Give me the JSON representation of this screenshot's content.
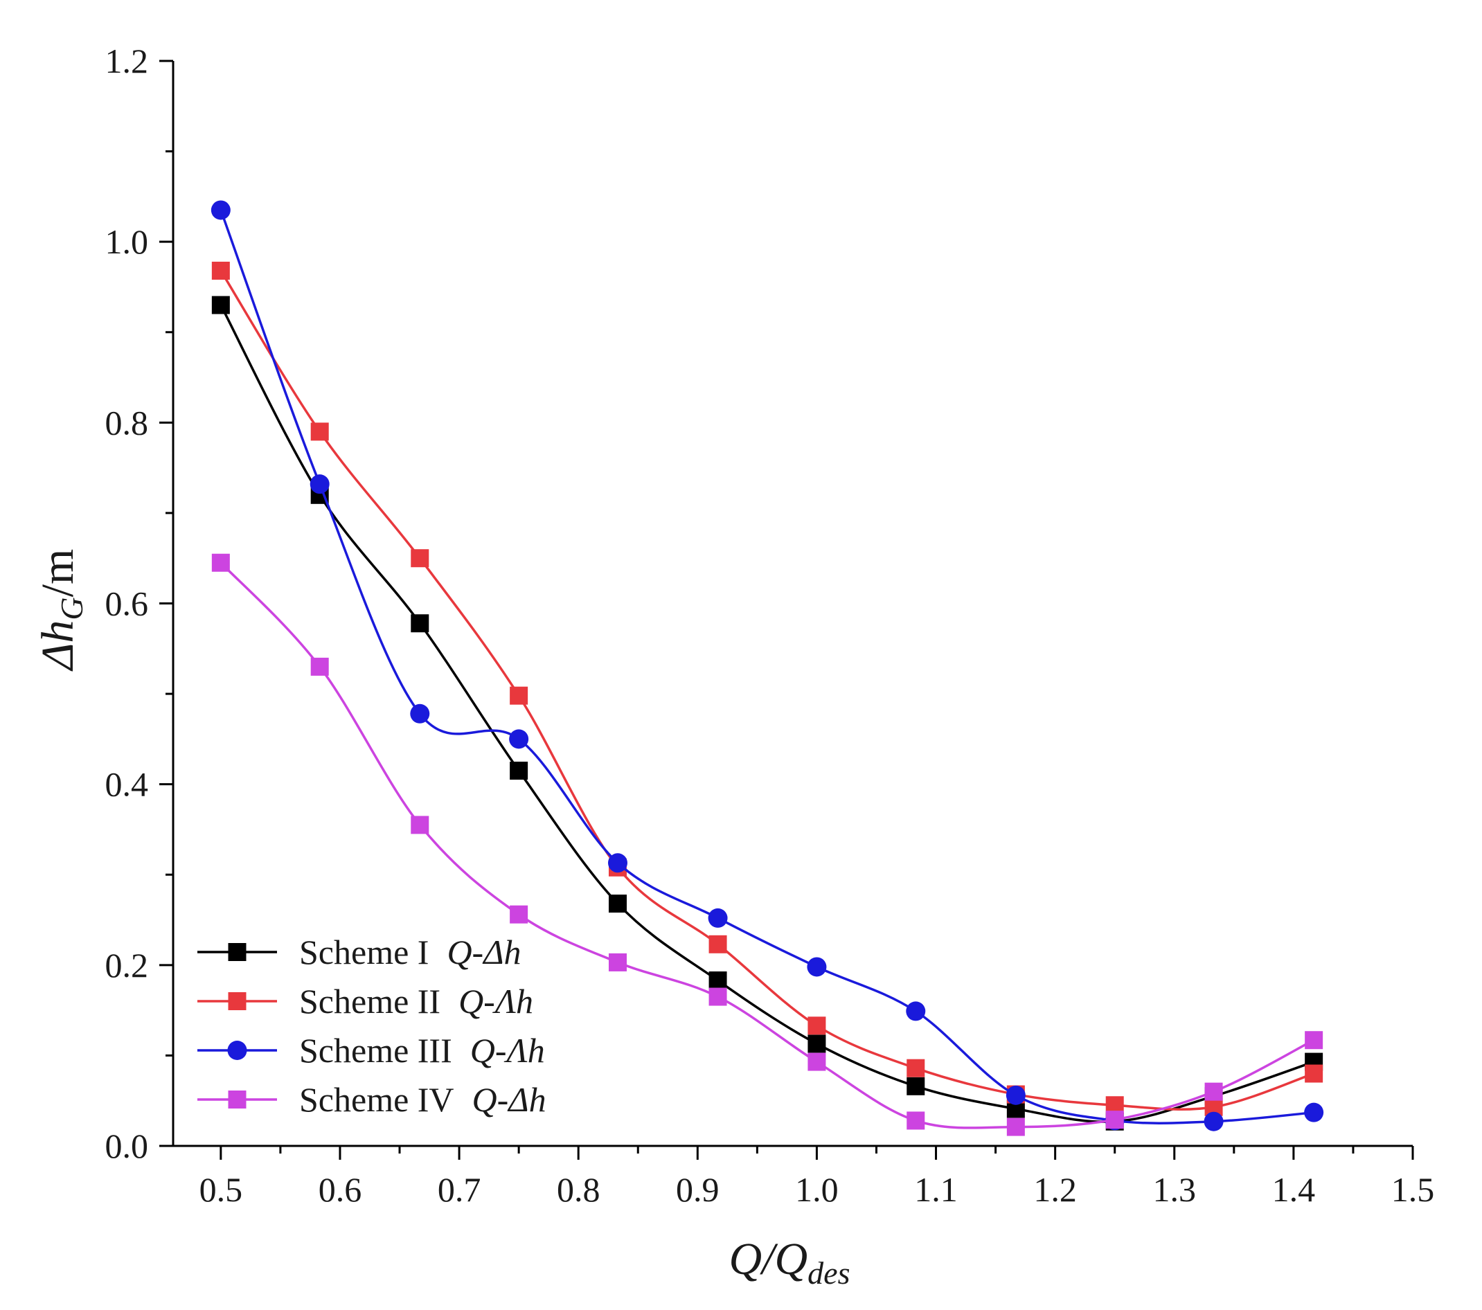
{
  "chart_data": {
    "type": "line",
    "title": "",
    "xlabel": "Q/Qdes",
    "xlabel_main": "Q/Q",
    "xlabel_sub": "des",
    "ylabel": "ΔhG/m",
    "ylabel_main": "Δh",
    "ylabel_sub": "G",
    "ylabel_unit": "/m",
    "xlim": [
      0.46,
      1.5
    ],
    "ylim": [
      0.0,
      1.2
    ],
    "xticks": [
      0.5,
      0.6,
      0.7,
      0.8,
      0.9,
      1.0,
      1.1,
      1.2,
      1.3,
      1.4,
      1.5
    ],
    "xtick_labels": [
      "0.5",
      "0.6",
      "0.7",
      "0.8",
      "0.9",
      "1.0",
      "1.1",
      "1.2",
      "1.3",
      "1.4",
      "1.5"
    ],
    "yticks": [
      0.0,
      0.2,
      0.4,
      0.6,
      0.8,
      1.0,
      1.2
    ],
    "ytick_labels": [
      "0.0",
      "0.2",
      "0.4",
      "0.6",
      "0.8",
      "1.0",
      "1.2"
    ],
    "grid": false,
    "legend_position": "bottom-left",
    "x": [
      0.5,
      0.583,
      0.667,
      0.75,
      0.833,
      0.917,
      1.0,
      1.083,
      1.167,
      1.25,
      1.333,
      1.417
    ],
    "series": [
      {
        "name": "Scheme I",
        "suffix": "Q-Δh",
        "color": "#000000",
        "marker": "square",
        "values": [
          0.93,
          0.72,
          0.578,
          0.415,
          0.268,
          0.183,
          0.113,
          0.066,
          0.041,
          0.027,
          0.055,
          0.093
        ]
      },
      {
        "name": "Scheme II",
        "suffix": "Q-Λh",
        "color": "#e8383d",
        "marker": "square",
        "values": [
          0.968,
          0.79,
          0.65,
          0.498,
          0.308,
          0.223,
          0.133,
          0.086,
          0.057,
          0.045,
          0.043,
          0.08
        ]
      },
      {
        "name": "Scheme III",
        "suffix": "Q-Λh",
        "color": "#1a1adb",
        "marker": "circle",
        "values": [
          1.035,
          0.732,
          0.478,
          0.45,
          0.313,
          0.252,
          0.198,
          0.149,
          0.056,
          0.028,
          0.027,
          0.037
        ]
      },
      {
        "name": "Scheme IV",
        "suffix": "Q-Δh",
        "color": "#cc44e0",
        "marker": "square",
        "values": [
          0.645,
          0.53,
          0.355,
          0.256,
          0.203,
          0.165,
          0.093,
          0.028,
          0.021,
          0.029,
          0.06,
          0.117
        ]
      }
    ]
  }
}
